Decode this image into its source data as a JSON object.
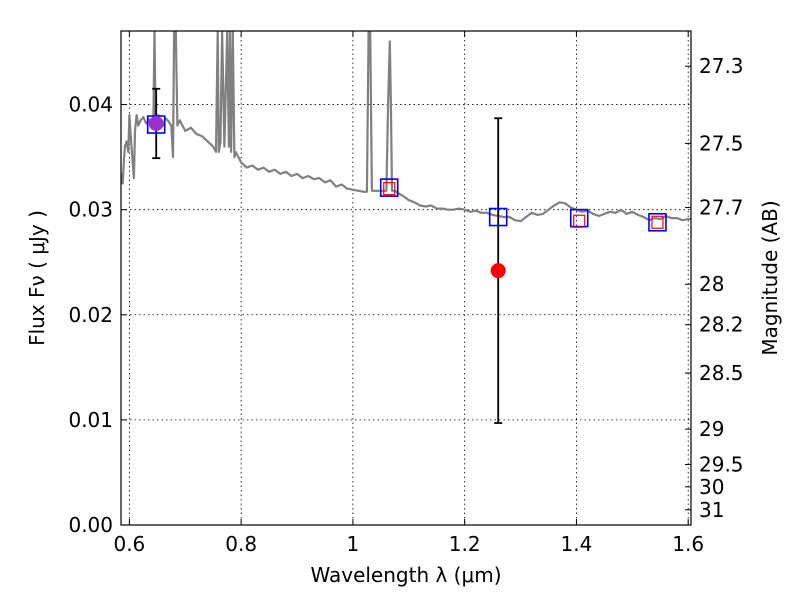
{
  "chart_data": {
    "type": "scatter",
    "xlabel": "Wavelength  λ (μm)",
    "ylabel": "Flux  Fν  ( μJy )",
    "ylabel_right": "Magnitude (AB)",
    "xlim": [
      0.585,
      1.605
    ],
    "ylim": [
      0.0,
      0.047
    ],
    "x_ticks": [
      0.6,
      0.8,
      1.0,
      1.2,
      1.4,
      1.6
    ],
    "x_tick_labels": [
      "0.6",
      "0.8",
      "1",
      "1.2",
      "1.4",
      "1.6"
    ],
    "y_ticks": [
      0.0,
      0.01,
      0.02,
      0.03,
      0.04
    ],
    "y_tick_labels": [
      "0.00",
      "0.01",
      "0.02",
      "0.03",
      "0.04"
    ],
    "mag_ticks": [
      27.3,
      27.5,
      27.7,
      28,
      28.2,
      28.5,
      29,
      29.5,
      30,
      31
    ],
    "mag_tick_labels": [
      "27.3",
      "27.5",
      "27.7",
      "28",
      "28.2",
      "28.5",
      "29",
      "29.5",
      "30",
      "31"
    ],
    "grid": true,
    "colors": {
      "template": "#808080",
      "model_box": "#0000ff",
      "model_inner": "#ff0000",
      "observed": "#ff0000",
      "observed_violet": "#9b30d0",
      "errorbar": "#000000"
    },
    "template_spectrum": {
      "x": [
        0.585,
        0.588,
        0.59,
        0.592,
        0.595,
        0.598,
        0.6,
        0.603,
        0.606,
        0.608,
        0.61,
        0.613,
        0.616,
        0.62,
        0.625,
        0.63,
        0.635,
        0.64,
        0.643,
        0.645,
        0.647,
        0.652,
        0.655,
        0.66,
        0.665,
        0.67,
        0.675,
        0.678,
        0.68,
        0.683,
        0.686,
        0.69,
        0.7,
        0.71,
        0.72,
        0.73,
        0.74,
        0.75,
        0.755,
        0.758,
        0.76,
        0.763,
        0.766,
        0.77,
        0.775,
        0.778,
        0.78,
        0.782,
        0.785,
        0.788,
        0.79,
        0.795,
        0.8,
        0.81,
        0.82,
        0.83,
        0.84,
        0.85,
        0.86,
        0.87,
        0.88,
        0.89,
        0.9,
        0.91,
        0.92,
        0.93,
        0.94,
        0.95,
        0.96,
        0.97,
        0.98,
        0.99,
        1.0,
        1.01,
        1.02,
        1.025,
        1.028,
        1.031,
        1.034,
        1.04,
        1.05,
        1.06,
        1.063,
        1.066,
        1.068,
        1.07,
        1.075,
        1.08,
        1.09,
        1.1,
        1.11,
        1.12,
        1.13,
        1.14,
        1.15,
        1.16,
        1.17,
        1.18,
        1.19,
        1.2,
        1.21,
        1.22,
        1.23,
        1.24,
        1.25,
        1.26,
        1.27,
        1.28,
        1.29,
        1.3,
        1.31,
        1.32,
        1.33,
        1.34,
        1.35,
        1.36,
        1.37,
        1.38,
        1.39,
        1.4,
        1.41,
        1.42,
        1.43,
        1.44,
        1.45,
        1.46,
        1.47,
        1.48,
        1.49,
        1.5,
        1.51,
        1.52,
        1.53,
        1.54,
        1.55,
        1.56,
        1.57,
        1.58,
        1.59,
        1.6,
        1.605
      ],
      "y": [
        0.0335,
        0.0325,
        0.0345,
        0.036,
        0.0365,
        0.0355,
        0.039,
        0.0365,
        0.0345,
        0.033,
        0.0375,
        0.039,
        0.038,
        0.0385,
        0.0388,
        0.0382,
        0.0386,
        0.038,
        0.0385,
        0.047,
        0.0385,
        0.039,
        0.0385,
        0.038,
        0.0387,
        0.0384,
        0.038,
        0.035,
        0.047,
        0.047,
        0.038,
        0.0385,
        0.0375,
        0.0378,
        0.0372,
        0.037,
        0.0365,
        0.036,
        0.0355,
        0.047,
        0.0355,
        0.0365,
        0.047,
        0.036,
        0.047,
        0.036,
        0.047,
        0.0355,
        0.047,
        0.035,
        0.0355,
        0.035,
        0.0345,
        0.034,
        0.0342,
        0.0338,
        0.034,
        0.0336,
        0.0338,
        0.0334,
        0.0336,
        0.0332,
        0.0334,
        0.033,
        0.0332,
        0.0329,
        0.033,
        0.0326,
        0.0328,
        0.0322,
        0.0324,
        0.032,
        0.0319,
        0.0318,
        0.0317,
        0.0317,
        0.047,
        0.047,
        0.0318,
        0.0318,
        0.0318,
        0.0318,
        0.04,
        0.046,
        0.04,
        0.0318,
        0.0318,
        0.0316,
        0.0313,
        0.0309,
        0.0307,
        0.0304,
        0.0303,
        0.0304,
        0.0301,
        0.0301,
        0.03,
        0.03,
        0.0301,
        0.03,
        0.0298,
        0.0299,
        0.0297,
        0.0297,
        0.0295,
        0.0294,
        0.0293,
        0.0293,
        0.029,
        0.0289,
        0.0293,
        0.0297,
        0.0295,
        0.0296,
        0.03,
        0.0304,
        0.0307,
        0.0306,
        0.0302,
        0.03,
        0.0298,
        0.0299,
        0.0296,
        0.0294,
        0.0296,
        0.0298,
        0.0297,
        0.03,
        0.0296,
        0.0298,
        0.0295,
        0.0293,
        0.029,
        0.0292,
        0.0291,
        0.0294,
        0.0292,
        0.0292,
        0.029,
        0.0291,
        0.0291
      ]
    },
    "model_points": {
      "x": [
        0.648,
        1.065,
        1.26,
        1.405,
        1.545
      ],
      "y": [
        0.0381,
        0.0321,
        0.0293,
        0.0292,
        0.0288
      ]
    },
    "observed_points": {
      "x": [
        0.648,
        1.065,
        1.26,
        1.405,
        1.545
      ],
      "y": [
        0.0382,
        0.032,
        0.0242,
        0.0289,
        0.0288
      ],
      "yerr": [
        0.0033,
        0.0,
        0.0145,
        0.0,
        0.0
      ],
      "detected": [
        true,
        false,
        true,
        false,
        false
      ]
    }
  }
}
